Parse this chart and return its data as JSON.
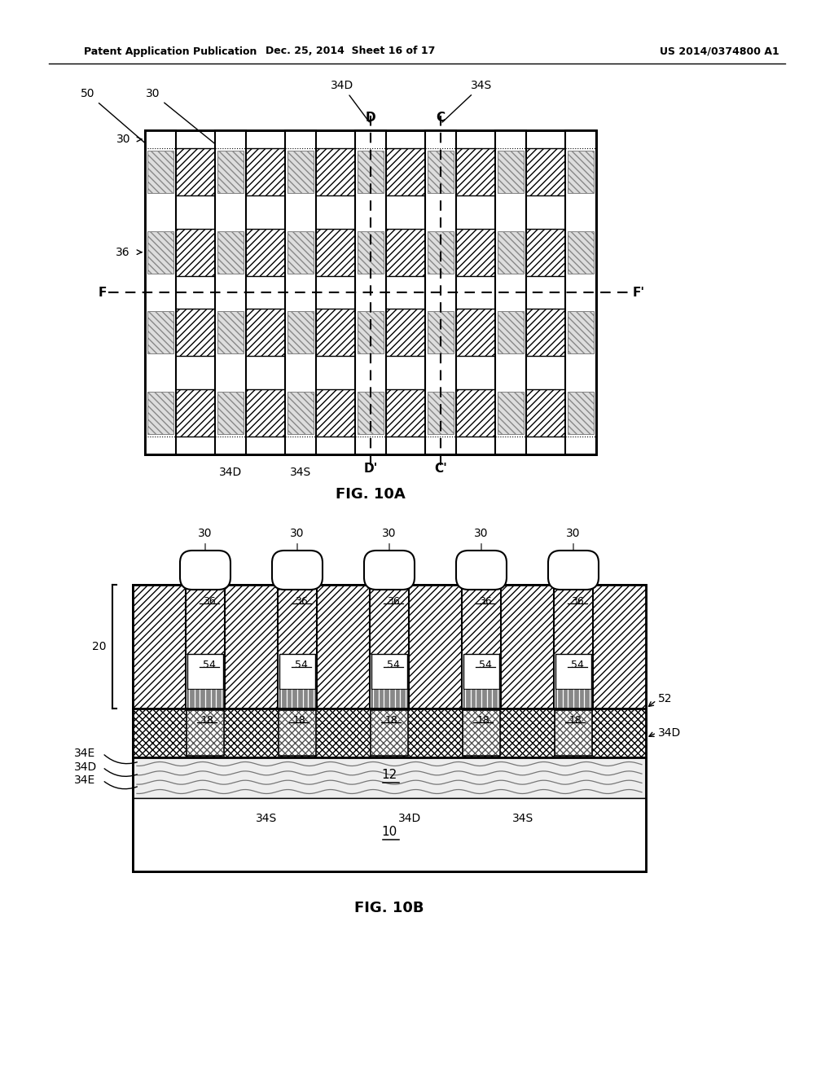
{
  "header_left": "Patent Application Publication",
  "header_mid": "Dec. 25, 2014  Sheet 16 of 17",
  "header_right": "US 2014/0374800 A1",
  "fig10a_caption": "FIG. 10A",
  "fig10b_caption": "FIG. 10B",
  "bg_color": "#ffffff",
  "line_color": "#000000"
}
